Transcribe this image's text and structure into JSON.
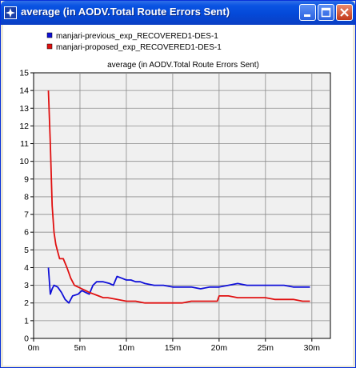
{
  "window": {
    "title": "average (in AODV.Total Route Errors Sent)",
    "buttons": [
      "minimize",
      "maximize",
      "close"
    ],
    "icon": "simulation-star-icon"
  },
  "chart_data": {
    "type": "line",
    "title": "average (in AODV.Total Route Errors Sent)",
    "xlabel": "",
    "ylabel": "",
    "xlim": [
      0,
      32
    ],
    "ylim": [
      0,
      15
    ],
    "x_ticks": [
      {
        "v": 0,
        "label": "0m"
      },
      {
        "v": 5,
        "label": "5m"
      },
      {
        "v": 10,
        "label": "10m"
      },
      {
        "v": 15,
        "label": "15m"
      },
      {
        "v": 20,
        "label": "20m"
      },
      {
        "v": 25,
        "label": "25m"
      },
      {
        "v": 30,
        "label": "30m"
      }
    ],
    "y_ticks": [
      0,
      1,
      2,
      3,
      4,
      5,
      6,
      7,
      8,
      9,
      10,
      11,
      12,
      13,
      14,
      15
    ],
    "grid": true,
    "legend_position": "top-left",
    "series": [
      {
        "name": "manjari-previous_exp_RECOVERED1-DES-1",
        "color": "#1010d8",
        "points": [
          [
            1.6,
            4.0
          ],
          [
            1.8,
            2.5
          ],
          [
            2.0,
            2.8
          ],
          [
            2.2,
            3.0
          ],
          [
            2.6,
            2.9
          ],
          [
            3.0,
            2.6
          ],
          [
            3.4,
            2.2
          ],
          [
            3.8,
            2.0
          ],
          [
            4.2,
            2.4
          ],
          [
            4.8,
            2.5
          ],
          [
            5.2,
            2.7
          ],
          [
            5.6,
            2.6
          ],
          [
            6.0,
            2.5
          ],
          [
            6.4,
            3.0
          ],
          [
            6.8,
            3.2
          ],
          [
            7.5,
            3.2
          ],
          [
            8.2,
            3.1
          ],
          [
            8.6,
            3.0
          ],
          [
            9.0,
            3.5
          ],
          [
            9.5,
            3.4
          ],
          [
            10.0,
            3.3
          ],
          [
            10.5,
            3.3
          ],
          [
            11.0,
            3.2
          ],
          [
            11.5,
            3.2
          ],
          [
            12.0,
            3.1
          ],
          [
            13.0,
            3.0
          ],
          [
            14.0,
            3.0
          ],
          [
            15.0,
            2.9
          ],
          [
            16.0,
            2.9
          ],
          [
            17.0,
            2.9
          ],
          [
            18.0,
            2.8
          ],
          [
            19.0,
            2.9
          ],
          [
            20.0,
            2.9
          ],
          [
            21.0,
            3.0
          ],
          [
            22.0,
            3.1
          ],
          [
            23.0,
            3.0
          ],
          [
            24.0,
            3.0
          ],
          [
            25.0,
            3.0
          ],
          [
            26.0,
            3.0
          ],
          [
            27.0,
            3.0
          ],
          [
            28.0,
            2.9
          ],
          [
            29.0,
            2.9
          ],
          [
            29.8,
            2.9
          ]
        ]
      },
      {
        "name": "manjari-proposed_exp_RECOVERED1-DES-1",
        "color": "#e01010",
        "points": [
          [
            1.6,
            14.0
          ],
          [
            1.8,
            11.0
          ],
          [
            2.0,
            7.5
          ],
          [
            2.2,
            6.0
          ],
          [
            2.4,
            5.3
          ],
          [
            2.6,
            4.9
          ],
          [
            2.8,
            4.5
          ],
          [
            3.2,
            4.5
          ],
          [
            3.6,
            4.0
          ],
          [
            4.0,
            3.4
          ],
          [
            4.4,
            3.0
          ],
          [
            4.8,
            2.9
          ],
          [
            5.2,
            2.8
          ],
          [
            5.6,
            2.7
          ],
          [
            6.0,
            2.6
          ],
          [
            6.5,
            2.5
          ],
          [
            7.0,
            2.4
          ],
          [
            7.5,
            2.3
          ],
          [
            8.0,
            2.3
          ],
          [
            9.0,
            2.2
          ],
          [
            10.0,
            2.1
          ],
          [
            11.0,
            2.1
          ],
          [
            12.0,
            2.0
          ],
          [
            13.0,
            2.0
          ],
          [
            14.0,
            2.0
          ],
          [
            15.0,
            2.0
          ],
          [
            16.0,
            2.0
          ],
          [
            17.0,
            2.1
          ],
          [
            18.0,
            2.1
          ],
          [
            19.0,
            2.1
          ],
          [
            19.8,
            2.1
          ],
          [
            20.0,
            2.4
          ],
          [
            21.0,
            2.4
          ],
          [
            22.0,
            2.3
          ],
          [
            23.0,
            2.3
          ],
          [
            24.0,
            2.3
          ],
          [
            25.0,
            2.3
          ],
          [
            26.0,
            2.2
          ],
          [
            27.0,
            2.2
          ],
          [
            28.0,
            2.2
          ],
          [
            29.0,
            2.1
          ],
          [
            29.8,
            2.1
          ]
        ]
      }
    ]
  }
}
